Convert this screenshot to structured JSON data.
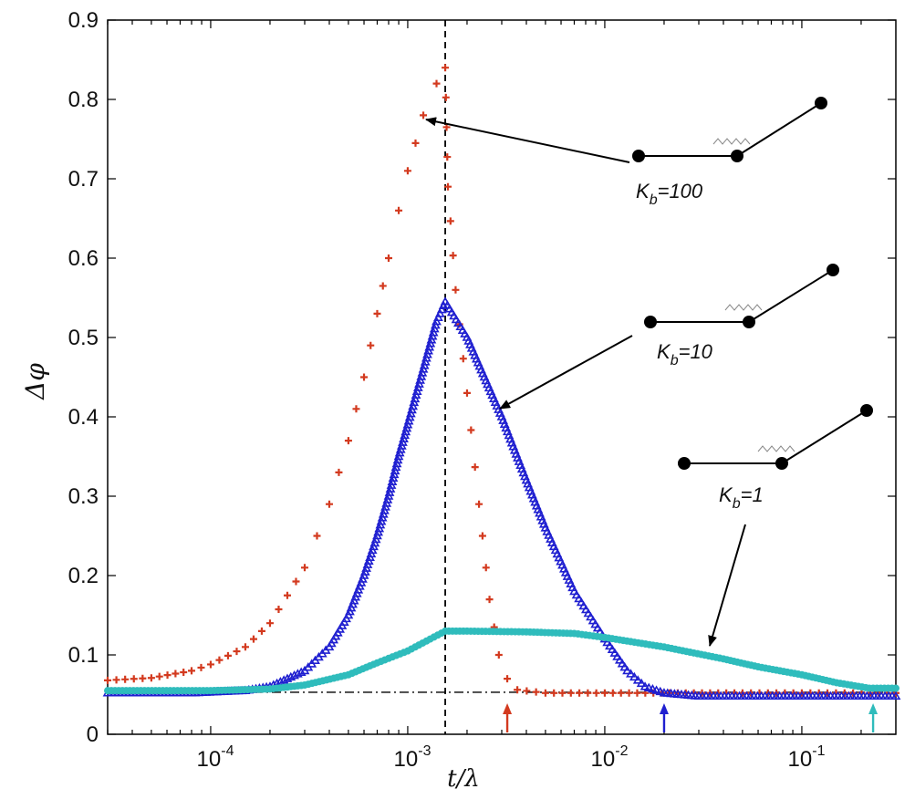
{
  "chart_data": {
    "type": "scatter",
    "xscale": "log",
    "xlim": [
      3e-05,
      0.3
    ],
    "ylim": [
      0,
      0.9
    ],
    "xlabel": "t/λ",
    "ylabel": "Δφ",
    "xticks": [
      {
        "value": 0.0001,
        "base": "10",
        "exp": "-4"
      },
      {
        "value": 0.001,
        "base": "10",
        "exp": "-3"
      },
      {
        "value": 0.01,
        "base": "10",
        "exp": "-2"
      },
      {
        "value": 0.1,
        "base": "10",
        "exp": "-1"
      }
    ],
    "yticks": [
      "0",
      "0.1",
      "0.2",
      "0.3",
      "0.4",
      "0.5",
      "0.6",
      "0.7",
      "0.8",
      "0.9"
    ],
    "reference_lines": {
      "vertical_dashed_x": 0.00155,
      "horizontal_dashdot_y": 0.053
    },
    "series": [
      {
        "color": "#d33a1f",
        "marker": "plus",
        "points": [
          [
            3e-05,
            0.068
          ],
          [
            5e-05,
            0.071
          ],
          [
            8e-05,
            0.08
          ],
          [
            0.0001,
            0.088
          ],
          [
            0.00015,
            0.11
          ],
          [
            0.0002,
            0.14
          ],
          [
            0.0003,
            0.21
          ],
          [
            0.0004,
            0.29
          ],
          [
            0.0005,
            0.37
          ],
          [
            0.0006,
            0.45
          ],
          [
            0.0007,
            0.53
          ],
          [
            0.0008,
            0.6
          ],
          [
            0.0009,
            0.66
          ],
          [
            0.001,
            0.71
          ],
          [
            0.0012,
            0.78
          ],
          [
            0.0014,
            0.82
          ],
          [
            0.00155,
            0.84
          ],
          [
            0.0016,
            0.69
          ],
          [
            0.00175,
            0.56
          ],
          [
            0.002,
            0.43
          ],
          [
            0.0023,
            0.29
          ],
          [
            0.0026,
            0.17
          ],
          [
            0.0029,
            0.1
          ],
          [
            0.0032,
            0.07
          ],
          [
            0.0036,
            0.056
          ],
          [
            0.005,
            0.052
          ],
          [
            0.01,
            0.052
          ],
          [
            0.05,
            0.052
          ],
          [
            0.1,
            0.052
          ],
          [
            0.3,
            0.052
          ]
        ]
      },
      {
        "color": "#1f1fd0",
        "marker": "triangle",
        "points": [
          [
            3e-05,
            0.052
          ],
          [
            8e-05,
            0.052
          ],
          [
            0.00015,
            0.055
          ],
          [
            0.0002,
            0.06
          ],
          [
            0.0003,
            0.08
          ],
          [
            0.0004,
            0.11
          ],
          [
            0.0005,
            0.15
          ],
          [
            0.0006,
            0.2
          ],
          [
            0.0007,
            0.25
          ],
          [
            0.0008,
            0.3
          ],
          [
            0.0009,
            0.35
          ],
          [
            0.001,
            0.39
          ],
          [
            0.0012,
            0.46
          ],
          [
            0.0014,
            0.52
          ],
          [
            0.00155,
            0.545
          ],
          [
            0.002,
            0.5
          ],
          [
            0.003,
            0.4
          ],
          [
            0.004,
            0.32
          ],
          [
            0.005,
            0.26
          ],
          [
            0.007,
            0.18
          ],
          [
            0.01,
            0.12
          ],
          [
            0.013,
            0.08
          ],
          [
            0.016,
            0.06
          ],
          [
            0.02,
            0.052
          ],
          [
            0.03,
            0.048
          ],
          [
            0.1,
            0.048
          ],
          [
            0.3,
            0.048
          ]
        ]
      },
      {
        "color": "#2fbcbc",
        "marker": "circle",
        "points": [
          [
            3e-05,
            0.055
          ],
          [
            0.0001,
            0.055
          ],
          [
            0.0002,
            0.057
          ],
          [
            0.0003,
            0.062
          ],
          [
            0.0005,
            0.075
          ],
          [
            0.0007,
            0.09
          ],
          [
            0.001,
            0.105
          ],
          [
            0.0013,
            0.12
          ],
          [
            0.00155,
            0.13
          ],
          [
            0.002,
            0.13
          ],
          [
            0.004,
            0.129
          ],
          [
            0.007,
            0.127
          ],
          [
            0.01,
            0.122
          ],
          [
            0.02,
            0.11
          ],
          [
            0.04,
            0.095
          ],
          [
            0.06,
            0.085
          ],
          [
            0.1,
            0.075
          ],
          [
            0.15,
            0.065
          ],
          [
            0.22,
            0.058
          ],
          [
            0.3,
            0.058
          ]
        ]
      }
    ],
    "annotations": [
      {
        "label_main": "K",
        "label_sub": "b",
        "label_value": "=100",
        "points_to": [
          0.0013,
          0.775
        ]
      },
      {
        "label_main": "K",
        "label_sub": "b",
        "label_value": "=10",
        "points_to": [
          0.0026,
          0.41
        ]
      },
      {
        "label_main": "K",
        "label_sub": "b",
        "label_value": "=1",
        "points_to": [
          0.043,
          0.1
        ]
      }
    ],
    "x_arrows": [
      {
        "x": 0.0032,
        "color": "#d33a1f"
      },
      {
        "x": 0.02,
        "color": "#1f1fd0"
      },
      {
        "x": 0.23,
        "color": "#2fbcbc"
      }
    ]
  }
}
